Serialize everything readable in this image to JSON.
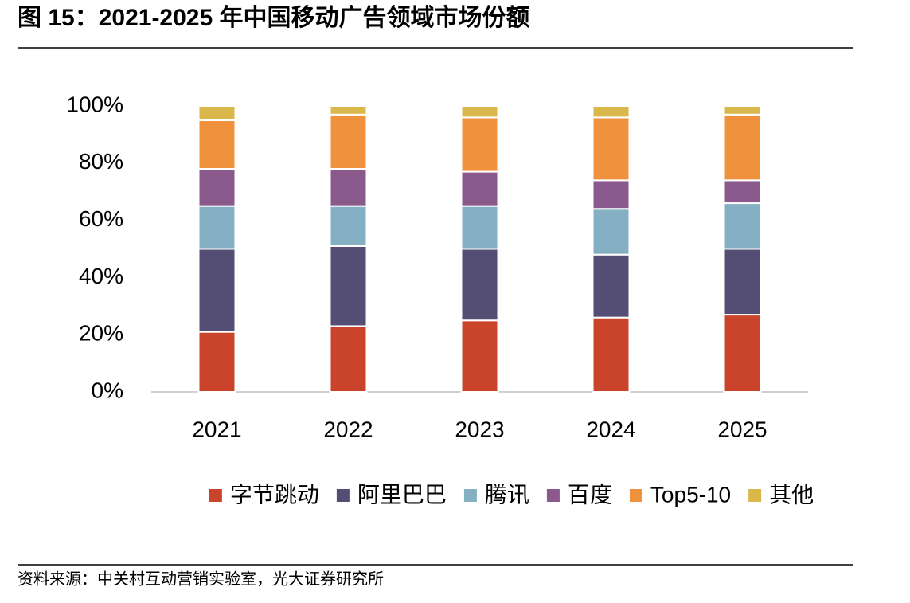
{
  "chart_data": {
    "type": "stacked-bar",
    "title": "图 15：2021-2025 年中国移动广告领域市场份额",
    "source": "资料来源：中关村互动营销实验室，光大证券研究所",
    "categories": [
      "2021",
      "2022",
      "2023",
      "2024",
      "2025"
    ],
    "series": [
      {
        "name": "字节跳动",
        "color": "#c9442a",
        "values": [
          21,
          23,
          25,
          26,
          27
        ]
      },
      {
        "name": "阿里巴巴",
        "color": "#554e74",
        "values": [
          29,
          28,
          25,
          22,
          23
        ]
      },
      {
        "name": "腾讯",
        "color": "#85b0c4",
        "values": [
          15,
          14,
          15,
          16,
          16
        ]
      },
      {
        "name": "百度",
        "color": "#8a5a8c",
        "values": [
          13,
          13,
          12,
          10,
          8
        ]
      },
      {
        "name": "Top5-10",
        "color": "#f0923d",
        "values": [
          17,
          19,
          19,
          22,
          23
        ]
      },
      {
        "name": "其他",
        "color": "#d9b74a",
        "values": [
          5,
          3,
          4,
          4,
          3
        ]
      }
    ],
    "ylim": [
      0,
      100
    ],
    "yticks": [
      {
        "value": 0,
        "label": "0%"
      },
      {
        "value": 20,
        "label": "20%"
      },
      {
        "value": 40,
        "label": "40%"
      },
      {
        "value": 60,
        "label": "60%"
      },
      {
        "value": 80,
        "label": "80%"
      },
      {
        "value": 100,
        "label": "100%"
      }
    ],
    "grid": false,
    "legend": "bottom"
  }
}
